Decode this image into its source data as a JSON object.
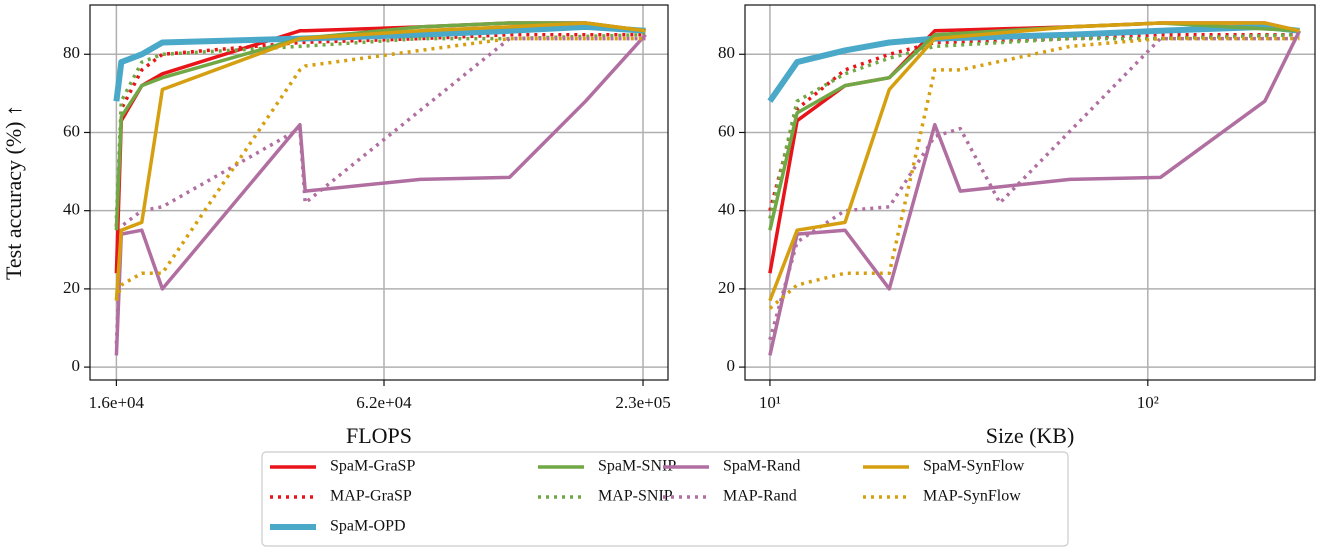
{
  "chart_data": [
    {
      "type": "line",
      "xlabel": "FLOPS",
      "ylabel": "Test accuracy (%) ↑",
      "xscale": "log",
      "grid": true,
      "xlim": [
        14000,
        261000
      ],
      "ylim": [
        -3.3,
        92.6
      ],
      "xticks": [
        {
          "value": 16000,
          "label": "1.6e+04"
        },
        {
          "value": 62000,
          "label": "6.2e+04"
        },
        {
          "value": 230000,
          "label": "2.3e+05"
        }
      ],
      "yticks": [
        0,
        20,
        40,
        60,
        80
      ],
      "series": [
        {
          "name": "SpaM-GraSP",
          "color": "#e8141a",
          "linestyle": "solid",
          "linewidth": 3.5,
          "x": [
            16000,
            16400,
            18200,
            20200,
            40500,
            41600,
            74500,
            117000,
            172000,
            233000
          ],
          "values": [
            24,
            63,
            72,
            75,
            86,
            86,
            87,
            88,
            88,
            86
          ]
        },
        {
          "name": "MAP-GraSP",
          "color": "#e8141a",
          "linestyle": "dotted",
          "linewidth": 3.5,
          "x": [
            16000,
            16400,
            18200,
            20200,
            40500,
            74500,
            117000,
            233000
          ],
          "values": [
            36,
            66,
            76,
            80,
            83,
            84,
            85,
            85
          ]
        },
        {
          "name": "SpaM-OPD",
          "color": "#4aa8c9",
          "linestyle": "solid",
          "linewidth": 6,
          "x": [
            16000,
            16400,
            18200,
            20200,
            40500,
            74500,
            117000,
            172000,
            233000
          ],
          "values": [
            68,
            78,
            80,
            83,
            84,
            85,
            86,
            87,
            86
          ]
        },
        {
          "name": "SpaM-SNIP",
          "color": "#70a845",
          "linestyle": "solid",
          "linewidth": 3.5,
          "x": [
            16000,
            16400,
            18200,
            20200,
            40500,
            74500,
            117000,
            172000,
            233000
          ],
          "values": [
            35,
            64,
            72,
            74,
            84,
            87,
            88,
            88,
            86
          ]
        },
        {
          "name": "MAP-SNIP",
          "color": "#70a845",
          "linestyle": "dotted",
          "linewidth": 3.5,
          "x": [
            16000,
            16400,
            18200,
            20200,
            40500,
            74500,
            117000,
            233000
          ],
          "values": [
            38,
            68,
            78,
            80,
            82,
            84,
            84,
            85
          ]
        },
        {
          "name": "SpaM-Rand",
          "color": "#b06fa0",
          "linestyle": "solid",
          "linewidth": 3.5,
          "x": [
            16000,
            16400,
            18200,
            20200,
            40500,
            41600,
            74500,
            117000,
            172000,
            233000
          ],
          "values": [
            3,
            34,
            35,
            20,
            62,
            45,
            48,
            48.5,
            68,
            85
          ]
        },
        {
          "name": "MAP-Rand",
          "color": "#b06fa0",
          "linestyle": "dotted",
          "linewidth": 3.5,
          "x": [
            16000,
            16400,
            18200,
            20200,
            40500,
            41600,
            117000,
            233000
          ],
          "values": [
            6,
            36,
            40,
            41,
            61,
            42,
            84,
            84
          ]
        },
        {
          "name": "SpaM-SynFlow",
          "color": "#d59f0f",
          "linestyle": "solid",
          "linewidth": 3.5,
          "x": [
            16000,
            16400,
            18200,
            20200,
            40500,
            74500,
            117000,
            172000,
            233000
          ],
          "values": [
            17,
            35,
            37,
            71,
            84,
            86,
            87,
            88,
            86
          ]
        },
        {
          "name": "MAP-SynFlow",
          "color": "#d59f0f",
          "linestyle": "dotted",
          "linewidth": 3.5,
          "x": [
            16000,
            16400,
            18200,
            20200,
            40500,
            41600,
            74500,
            117000,
            233000
          ],
          "values": [
            17,
            21,
            24,
            24,
            76,
            77,
            81,
            84,
            84
          ]
        }
      ]
    },
    {
      "type": "line",
      "xlabel": "Size (KB)",
      "xscale": "log",
      "grid": true,
      "xlim": [
        8.59,
        277
      ],
      "ylim": [
        -3.3,
        92.6
      ],
      "xticks": [
        {
          "value": 10,
          "label": "10¹"
        },
        {
          "value": 100,
          "label": "10²"
        }
      ],
      "yticks": [
        0,
        20,
        40,
        60,
        80
      ],
      "series": [
        {
          "name": "SpaM-GraSP",
          "color": "#e8141a",
          "linestyle": "solid",
          "linewidth": 3.5,
          "x": [
            10,
            11.8,
            15.8,
            20.7,
            27.3,
            62.2,
            108,
            204,
            252
          ],
          "values": [
            24,
            63,
            72,
            74,
            86,
            87,
            88,
            88,
            86
          ]
        },
        {
          "name": "MAP-GraSP",
          "color": "#e8141a",
          "linestyle": "dotted",
          "linewidth": 3.5,
          "x": [
            10,
            11.8,
            15.8,
            20.7,
            27.3,
            62.2,
            108,
            252
          ],
          "values": [
            40,
            66,
            76,
            80,
            83,
            84,
            85,
            85
          ]
        },
        {
          "name": "SpaM-OPD",
          "color": "#4aa8c9",
          "linestyle": "solid",
          "linewidth": 6,
          "x": [
            10,
            11.8,
            15.8,
            20.7,
            27.3,
            62.2,
            108,
            204,
            252
          ],
          "values": [
            68,
            78,
            81,
            83,
            84,
            85,
            86,
            87,
            86
          ]
        },
        {
          "name": "SpaM-SNIP",
          "color": "#70a845",
          "linestyle": "solid",
          "linewidth": 3.5,
          "x": [
            10,
            11.8,
            15.8,
            20.7,
            27.3,
            62.2,
            108,
            252
          ],
          "values": [
            35,
            65,
            72,
            74,
            85,
            87,
            88,
            86
          ]
        },
        {
          "name": "MAP-SNIP",
          "color": "#70a845",
          "linestyle": "dotted",
          "linewidth": 3.5,
          "x": [
            10,
            11.8,
            15.8,
            20.7,
            27.3,
            62.2,
            108,
            252
          ],
          "values": [
            38,
            68,
            75,
            79,
            82,
            84,
            84,
            85
          ]
        },
        {
          "name": "SpaM-Rand",
          "color": "#b06fa0",
          "linestyle": "solid",
          "linewidth": 3.5,
          "x": [
            10,
            11.8,
            15.8,
            20.7,
            27.3,
            31.9,
            62.2,
            108,
            204,
            252
          ],
          "values": [
            3,
            34,
            35,
            20,
            62,
            45,
            48,
            48.5,
            68,
            86
          ]
        },
        {
          "name": "MAP-Rand",
          "color": "#b06fa0",
          "linestyle": "dotted",
          "linewidth": 3.5,
          "x": [
            10,
            11.8,
            15.8,
            20.7,
            27.3,
            31.9,
            40.6,
            108,
            252
          ],
          "values": [
            7,
            32,
            40,
            41,
            59,
            61,
            42,
            84,
            84
          ]
        },
        {
          "name": "SpaM-SynFlow",
          "color": "#d59f0f",
          "linestyle": "solid",
          "linewidth": 3.5,
          "x": [
            10,
            11.8,
            15.8,
            20.7,
            27.3,
            62.2,
            108,
            204,
            252
          ],
          "values": [
            17,
            35,
            37,
            71,
            84,
            87,
            88,
            88,
            86
          ]
        },
        {
          "name": "MAP-SynFlow",
          "color": "#d59f0f",
          "linestyle": "dotted",
          "linewidth": 3.5,
          "x": [
            10,
            11.8,
            15.8,
            20.7,
            27.3,
            31.9,
            62.2,
            108,
            252
          ],
          "values": [
            15,
            21,
            24,
            24,
            76,
            76,
            82,
            84,
            84
          ]
        }
      ]
    }
  ]
}
